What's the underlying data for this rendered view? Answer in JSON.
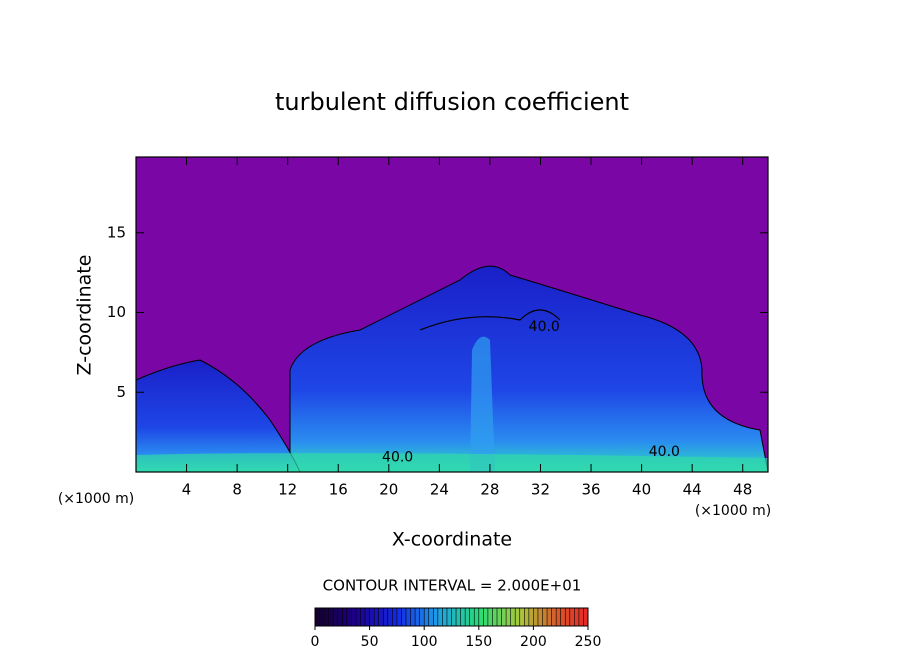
{
  "chart_data": {
    "type": "contour",
    "title": "turbulent diffusion coefficient",
    "x_label": "X-coordinate",
    "y_label": "Z-coordinate",
    "x_unit_left": "(×1000 m)",
    "x_unit_right": "(×1000 m)",
    "xlim": [
      0,
      50
    ],
    "ylim": [
      0,
      19.75
    ],
    "xticks": [
      4,
      8,
      12,
      16,
      20,
      24,
      28,
      32,
      36,
      40,
      44,
      48
    ],
    "yticks": [
      5,
      10,
      15
    ],
    "contour_labels": [
      {
        "label": "40.0",
        "value": 40,
        "x": 32.3,
        "y": 9.1
      },
      {
        "label": "40.0",
        "value": 40,
        "x": 20.7,
        "y": 0.9
      },
      {
        "label": "40.0",
        "value": 40,
        "x": 41.8,
        "y": 1.25
      }
    ],
    "colorbar": {
      "title": "CONTOUR INTERVAL = 2.000E+01",
      "lim": [
        0,
        250
      ],
      "ticks": [
        0,
        50,
        100,
        150,
        200,
        250
      ]
    }
  }
}
